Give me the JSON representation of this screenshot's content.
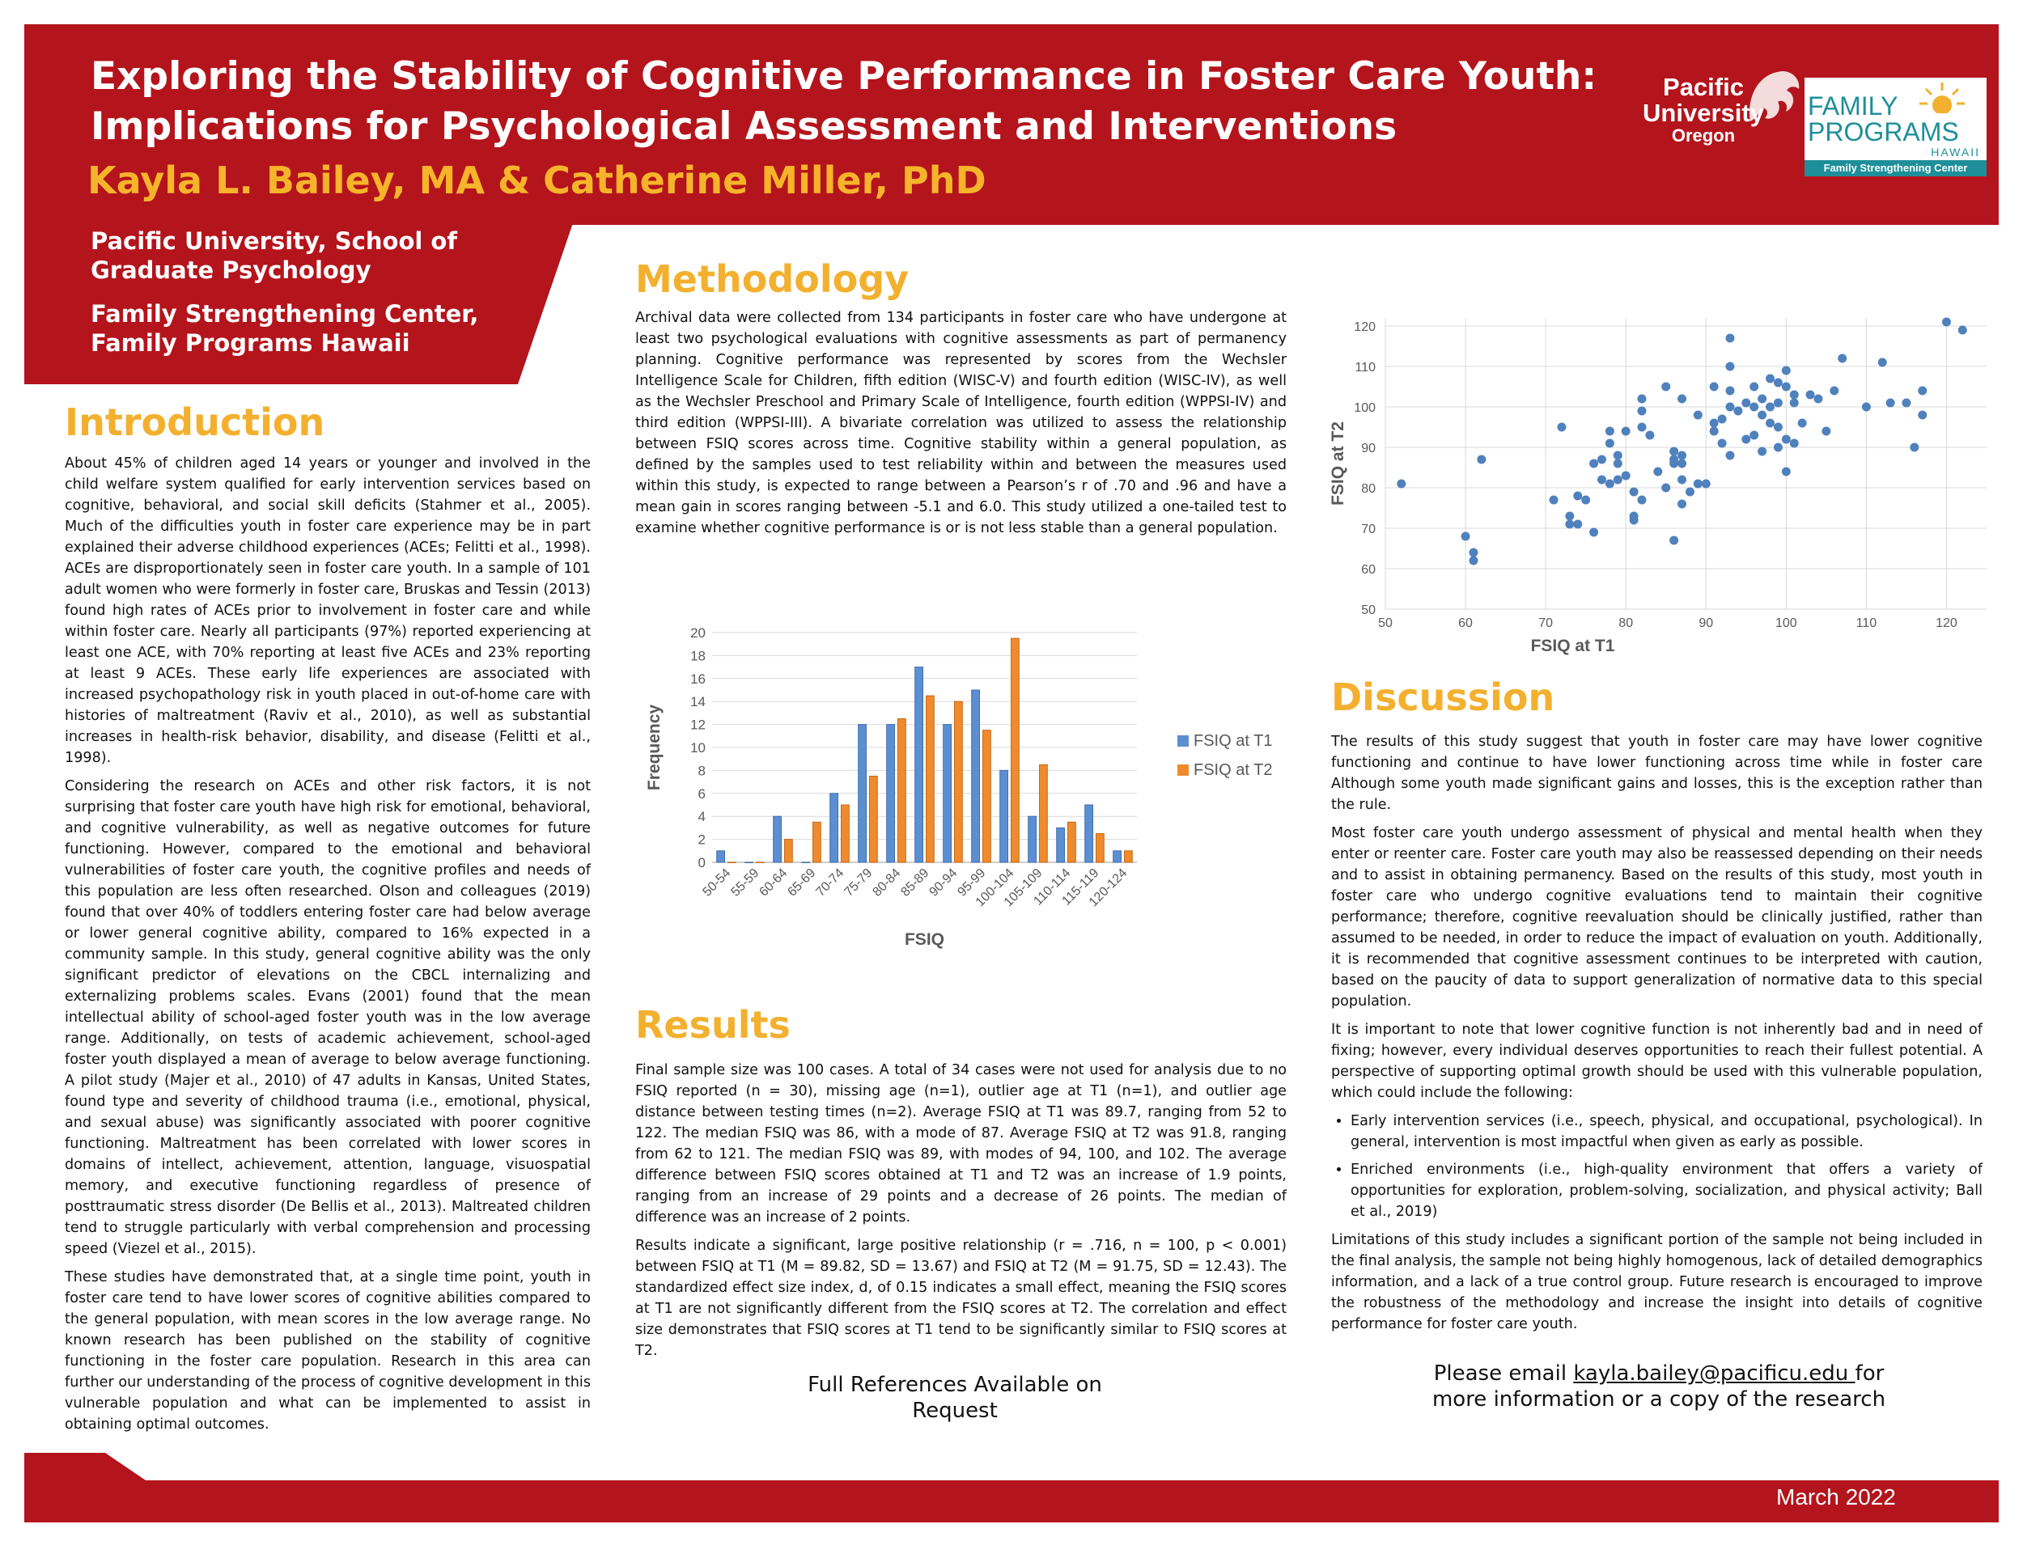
{
  "header": {
    "title_line1": "Exploring the Stability of Cognitive Performance in Foster Care Youth:",
    "title_line2": "Implications for Psychological Assessment and Interventions",
    "authors": "Kayla L. Bailey, MA & Catherine Miller, PhD",
    "affiliation1_line1": "Pacific University, School of",
    "affiliation1_line2": "Graduate Psychology",
    "affiliation2_line1": "Family Strengthening Center,",
    "affiliation2_line2": "Family Programs Hawaii",
    "logo_pacific": [
      "Pacific",
      "University",
      "Oregon"
    ],
    "logo_family": [
      "FAMILY",
      "PROGRAMS",
      "HAWAII",
      "Family Strengthening Center"
    ]
  },
  "introduction": {
    "heading": "Introduction",
    "paragraphs": [
      "About 45% of children aged 14 years or younger and involved in the child welfare system qualified for early intervention services based on cognitive, behavioral, and social skill deficits (Stahmer et al., 2005). Much of the difficulties youth in foster care experience may be in part explained their adverse childhood experiences (ACEs; Felitti et al., 1998). ACEs are disproportionately seen in foster care youth. In a sample of 101 adult women who were formerly in foster care, Bruskas and Tessin (2013) found high rates of ACEs prior to involvement in foster care and while within foster care. Nearly all participants (97%) reported experiencing at least one ACE, with 70% reporting at least five ACEs and 23% reporting at least 9 ACEs. These early life experiences are associated with increased psychopathology risk in youth placed in out-of-home care with histories of maltreatment (Raviv  et al., 2010), as well as substantial increases in health-risk behavior, disability, and disease (Felitti et al., 1998).",
      "Considering the research on ACEs and other risk factors, it is not surprising that foster care youth have high risk for emotional, behavioral, and cognitive vulnerability, as well as negative outcomes for future functioning. However, compared to the emotional and behavioral vulnerabilities of foster care youth, the cognitive profiles and needs of this population are less often researched. Olson and colleagues (2019) found that over 40% of toddlers entering foster care had below average or lower general cognitive ability, compared to 16% expected in a community sample. In this study, general cognitive ability was the only significant predictor of elevations on the CBCL internalizing and externalizing problems scales. Evans (2001) found that the mean intellectual ability of school-aged foster youth was in the low average range. Additionally, on tests of academic achievement, school-aged foster youth displayed a mean of average to below average functioning. A pilot study (Majer et al., 2010) of 47 adults in Kansas, United States, found type and severity of childhood trauma (i.e., emotional, physical, and sexual abuse) was significantly associated with poorer cognitive functioning. Maltreatment has been correlated with lower scores in domains of intellect, achievement, attention, language, visuospatial memory, and executive functioning regardless of presence of posttraumatic stress disorder (De Bellis et al., 2013). Maltreated children tend to struggle particularly with verbal comprehension and processing speed (Viezel et al., 2015).",
      "These studies have demonstrated that, at a single time point, youth in foster care tend to have lower scores of cognitive abilities compared to the general population, with mean scores in the low average range. No known research has been published on the stability of cognitive functioning in the foster care population. Research in this area can further our understanding of the process of cognitive development in this vulnerable population and what can be implemented to assist in obtaining optimal outcomes."
    ]
  },
  "methodology": {
    "heading": "Methodology",
    "text": "Archival data were collected from 134 participants in foster care who have undergone at least two psychological evaluations with cognitive assessments as part of permanency planning. Cognitive performance was represented by scores from the Wechsler Intelligence Scale for Children, fifth edition (WISC-V) and fourth edition (WISC-IV), as well as the Wechsler Preschool and Primary Scale of Intelligence, fourth edition (WPPSI-IV) and third edition (WPPSI-III). A bivariate correlation was utilized to assess the relationship between FSIQ scores across time. Cognitive stability within a general population, as defined by the samples used to test reliability within and between the measures used within this study, is expected to range between a Pearson’s r of .70 and .96 and have a mean gain in scores ranging between -5.1 and 6.0. This study utilized a one-tailed test to examine whether cognitive performance is or is not less stable than a general population."
  },
  "results": {
    "heading": "Results",
    "paragraphs": [
      "Final sample size was 100 cases. A total of 34 cases were not used for analysis due to no FSIQ reported (n = 30), missing age (n=1), outlier age at T1 (n=1), and outlier age distance between testing times (n=2). Average FSIQ at T1 was 89.7, ranging from 52 to 122. The median FSIQ was 86, with a mode of 87. Average FSIQ at T2 was 91.8, ranging from 62 to 121. The median FSIQ was 89, with modes of 94, 100, and 102. The average difference between FSIQ scores obtained at T1 and T2 was an increase of 1.9 points, ranging from an increase of 29 points and a decrease of 26 points. The median of difference was an increase of 2 points.",
      "Results indicate a significant, large positive relationship (r = .716, n = 100, p < 0.001) between FSIQ at T1 (M = 89.82, SD = 13.67) and FSIQ at T2 (M = 91.75, SD = 12.43). The standardized effect size index, d, of 0.15 indicates a small effect, meaning the FSIQ scores at T1 are not significantly different from the FSIQ scores at T2. The correlation and effect size demonstrates that FSIQ scores at T1 tend to be significantly similar to FSIQ scores at T2."
    ]
  },
  "references_note": [
    "Full References Available on",
    "Request"
  ],
  "discussion": {
    "heading": "Discussion",
    "paragraphs": [
      "The results of this study suggest that youth in foster care may have lower cognitive functioning and continue to have lower functioning across time while in foster care Although some youth made significant gains and losses, this is the exception rather than the rule.",
      "Most foster care youth undergo assessment of physical and mental health when they enter or reenter care. Foster care youth may also be reassessed depending on their needs and to assist in obtaining permanency.  Based on the results of this study, most youth in foster care who undergo cognitive evaluations tend to maintain their cognitive performance; therefore, cognitive reevaluation should be clinically justified, rather than assumed to be needed, in order to reduce the impact of evaluation on youth. Additionally, it is recommended that cognitive assessment continues to be interpreted with caution, based on the paucity of data to support generalization of normative data to this special population.",
      "It is important to note that lower cognitive function is not inherently bad and in need of fixing; however, every individual deserves opportunities to reach their fullest potential. A perspective of supporting optimal growth should be used with this vulnerable population, which could include the following:"
    ],
    "bullets": [
      "Early intervention services (i.e., speech, physical, and occupational, psychological). In general, intervention is most impactful when given as early as possible.",
      "Enriched environments (i.e., high-quality environment that offers a variety of opportunities for exploration, problem-solving, socialization, and physical activity; Ball et al., 2019)"
    ],
    "closing": "Limitations of this study includes a significant portion of the sample not being included in the final analysis, the sample not being highly homogenous, lack of detailed demographics information, and a lack of a true control group. Future research is encouraged to improve the robustness of the methodology and increase the insight into details of cognitive performance for foster care youth."
  },
  "contact": {
    "prefix": "Please email ",
    "email": "kayla.bailey@pacificu.edu ",
    "suffix": "for",
    "line2": "more information or a copy of the research"
  },
  "footer": {
    "date": "March 2022"
  },
  "colors": {
    "brand_red": "#b4141c",
    "accent_gold": "#f3b02f",
    "t1_blue": "#5b8fd1",
    "t2_orange": "#ef8a2e",
    "scatter_blue": "#4f81bd"
  },
  "chart_data": [
    {
      "type": "bar",
      "title": "",
      "xlabel": "FSIQ",
      "ylabel": "Frequency",
      "ylim": [
        0,
        20
      ],
      "yticks": [
        0,
        2,
        4,
        6,
        8,
        10,
        12,
        14,
        16,
        18,
        20
      ],
      "categories": [
        "50-54",
        "55-59",
        "60-64",
        "65-69",
        "70-74",
        "75-79",
        "80-84",
        "85-89",
        "90-94",
        "95-99",
        "100-104",
        "105-109",
        "110-114",
        "115-119",
        "120-124"
      ],
      "series": [
        {
          "name": "FSIQ at T1",
          "values": [
            1,
            0,
            4,
            0,
            6,
            12,
            12,
            17,
            12,
            15,
            8,
            4,
            3,
            5,
            1
          ]
        },
        {
          "name": "FSIQ at T2",
          "values": [
            0,
            0,
            2,
            3.5,
            5,
            7.5,
            12.5,
            14.5,
            14,
            11.5,
            19.5,
            8.5,
            3.5,
            2.5,
            1
          ]
        }
      ],
      "legend": "right"
    },
    {
      "type": "scatter",
      "title": "",
      "xlabel": "FSIQ at T1",
      "ylabel": "FSIQ at T2",
      "xlim": [
        50,
        125
      ],
      "ylim": [
        50,
        122
      ],
      "xticks": [
        50,
        60,
        70,
        80,
        90,
        100,
        110,
        120
      ],
      "yticks": [
        50,
        60,
        70,
        80,
        90,
        100,
        110,
        120
      ],
      "points": [
        [
          52,
          81
        ],
        [
          60,
          68
        ],
        [
          61,
          62
        ],
        [
          61,
          64
        ],
        [
          62,
          87
        ],
        [
          71,
          77
        ],
        [
          72,
          95
        ],
        [
          73,
          71
        ],
        [
          73,
          73
        ],
        [
          74,
          78
        ],
        [
          74,
          71
        ],
        [
          75,
          77
        ],
        [
          76,
          86
        ],
        [
          76,
          69
        ],
        [
          77,
          87
        ],
        [
          77,
          82
        ],
        [
          78,
          91
        ],
        [
          78,
          94
        ],
        [
          78,
          81
        ],
        [
          79,
          88
        ],
        [
          79,
          86
        ],
        [
          79,
          82
        ],
        [
          80,
          83
        ],
        [
          80,
          94
        ],
        [
          81,
          79
        ],
        [
          81,
          73
        ],
        [
          81,
          72
        ],
        [
          82,
          95
        ],
        [
          82,
          102
        ],
        [
          82,
          99
        ],
        [
          82,
          77
        ],
        [
          83,
          93
        ],
        [
          84,
          84
        ],
        [
          85,
          105
        ],
        [
          85,
          80
        ],
        [
          86,
          89
        ],
        [
          86,
          86
        ],
        [
          86,
          87
        ],
        [
          86,
          67
        ],
        [
          87,
          88
        ],
        [
          87,
          86
        ],
        [
          87,
          82
        ],
        [
          87,
          76
        ],
        [
          87,
          102
        ],
        [
          88,
          79
        ],
        [
          89,
          98
        ],
        [
          89,
          81
        ],
        [
          90,
          81
        ],
        [
          91,
          105
        ],
        [
          91,
          96
        ],
        [
          91,
          94
        ],
        [
          92,
          97
        ],
        [
          92,
          91
        ],
        [
          93,
          117
        ],
        [
          93,
          110
        ],
        [
          93,
          104
        ],
        [
          93,
          100
        ],
        [
          93,
          88
        ],
        [
          94,
          99
        ],
        [
          95,
          92
        ],
        [
          95,
          101
        ],
        [
          96,
          100
        ],
        [
          96,
          93
        ],
        [
          96,
          105
        ],
        [
          97,
          89
        ],
        [
          97,
          98
        ],
        [
          97,
          102
        ],
        [
          98,
          100
        ],
        [
          98,
          96
        ],
        [
          98,
          107
        ],
        [
          99,
          101
        ],
        [
          99,
          95
        ],
        [
          99,
          90
        ],
        [
          99,
          106
        ],
        [
          100,
          105
        ],
        [
          100,
          84
        ],
        [
          100,
          92
        ],
        [
          100,
          109
        ],
        [
          101,
          103
        ],
        [
          101,
          101
        ],
        [
          101,
          91
        ],
        [
          102,
          96
        ],
        [
          103,
          103
        ],
        [
          104,
          102
        ],
        [
          105,
          94
        ],
        [
          106,
          104
        ],
        [
          107,
          112
        ],
        [
          110,
          100
        ],
        [
          112,
          111
        ],
        [
          113,
          101
        ],
        [
          115,
          101
        ],
        [
          116,
          90
        ],
        [
          117,
          98
        ],
        [
          117,
          104
        ],
        [
          120,
          121
        ],
        [
          122,
          119
        ]
      ]
    }
  ]
}
